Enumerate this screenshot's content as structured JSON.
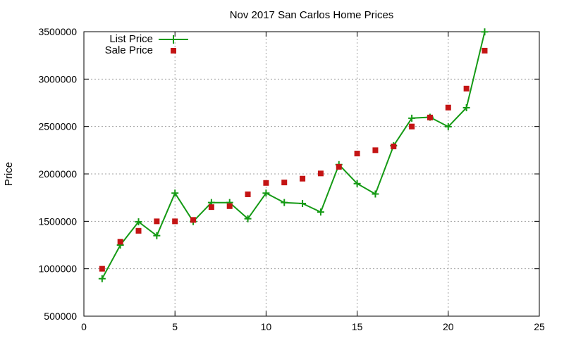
{
  "chart_data": {
    "type": "line",
    "title": "Nov 2017 San Carlos Home Prices",
    "xlabel": "",
    "ylabel": "Price",
    "xlim": [
      0,
      25
    ],
    "ylim": [
      500000,
      3500000
    ],
    "xticks": [
      0,
      5,
      10,
      15,
      20,
      25
    ],
    "yticks": [
      500000,
      1000000,
      1500000,
      2000000,
      2500000,
      3000000,
      3500000
    ],
    "grid": true,
    "legend_position": "top-left",
    "series": [
      {
        "name": "List Price",
        "style": "line-with-plus-markers",
        "color": "#159a15",
        "x": [
          1,
          2,
          3,
          4,
          5,
          6,
          7,
          8,
          9,
          10,
          11,
          12,
          13,
          14,
          15,
          16,
          17,
          18,
          19,
          20,
          21,
          22
        ],
        "values": [
          895000,
          1250000,
          1495000,
          1349000,
          1798000,
          1498000,
          1698000,
          1698000,
          1528000,
          1798000,
          1698000,
          1688000,
          1598000,
          2098000,
          1898000,
          1788000,
          2298000,
          2588000,
          2598000,
          2498000,
          2698000,
          3498000
        ]
      },
      {
        "name": "Sale Price",
        "style": "square-markers",
        "color": "#c41414",
        "x": [
          1,
          2,
          3,
          4,
          5,
          6,
          7,
          8,
          9,
          10,
          11,
          12,
          13,
          14,
          15,
          16,
          17,
          18,
          19,
          20,
          21,
          22
        ],
        "values": [
          1000000,
          1285000,
          1400000,
          1500000,
          1500000,
          1515000,
          1650000,
          1660000,
          1785000,
          1905000,
          1910000,
          1950000,
          2005000,
          2075000,
          2215000,
          2250000,
          2290000,
          2500000,
          2595000,
          2700000,
          2900000,
          3300000
        ]
      }
    ]
  }
}
